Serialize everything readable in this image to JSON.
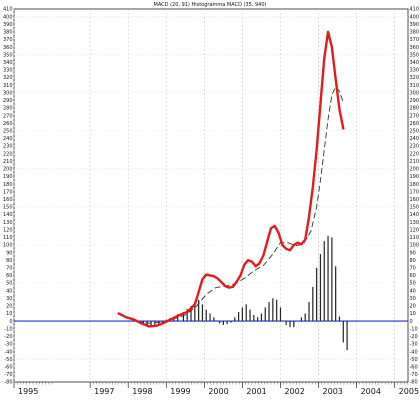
{
  "chart_data": {
    "type": "line",
    "title": "MACD (20, 91) Histogramma MACD (35, 940)",
    "xlabel": "",
    "ylabel": "",
    "xlim": [
      1995.0,
      2005.35
    ],
    "ylim": [
      -80,
      410
    ],
    "grid": true,
    "x_ticks": [
      "1995",
      "1997",
      "1998",
      "1999",
      "2000",
      "2001",
      "2002",
      "2003",
      "2004",
      "2005"
    ],
    "x_tick_positions": [
      1995,
      1997,
      1998,
      1999,
      2000,
      2001,
      2002,
      2003,
      2004,
      2005
    ],
    "y_ticks": [
      410,
      400,
      390,
      380,
      370,
      360,
      350,
      340,
      330,
      320,
      310,
      300,
      290,
      280,
      270,
      260,
      250,
      240,
      230,
      220,
      210,
      200,
      190,
      180,
      170,
      160,
      150,
      140,
      130,
      120,
      110,
      100,
      90,
      80,
      70,
      60,
      50,
      40,
      30,
      20,
      10,
      0,
      -10,
      -20,
      -30,
      -40,
      -50,
      -60,
      -70,
      -80
    ],
    "zero_line": 0,
    "series": [
      {
        "kind": "line",
        "color": "#e31b1b",
        "values": [
          [
            1997.75,
            10
          ],
          [
            1997.95,
            5
          ],
          [
            1998.15,
            2
          ],
          [
            1998.35,
            -3
          ],
          [
            1998.55,
            -7
          ],
          [
            1998.75,
            -6
          ],
          [
            1998.95,
            -2
          ],
          [
            1999.15,
            3
          ],
          [
            1999.35,
            8
          ],
          [
            1999.55,
            12
          ],
          [
            1999.75,
            22
          ],
          [
            1999.85,
            38
          ],
          [
            1999.95,
            55
          ],
          [
            2000.05,
            61
          ],
          [
            2000.15,
            60
          ],
          [
            2000.25,
            59
          ],
          [
            2000.35,
            56
          ],
          [
            2000.45,
            51
          ],
          [
            2000.55,
            46
          ],
          [
            2000.65,
            44
          ],
          [
            2000.75,
            45
          ],
          [
            2000.85,
            52
          ],
          [
            2000.95,
            60
          ],
          [
            2001.05,
            74
          ],
          [
            2001.15,
            80
          ],
          [
            2001.25,
            78
          ],
          [
            2001.35,
            72
          ],
          [
            2001.45,
            76
          ],
          [
            2001.55,
            86
          ],
          [
            2001.65,
            104
          ],
          [
            2001.75,
            122
          ],
          [
            2001.85,
            125
          ],
          [
            2001.95,
            116
          ],
          [
            2002.05,
            100
          ],
          [
            2002.15,
            95
          ],
          [
            2002.25,
            93
          ],
          [
            2002.35,
            100
          ],
          [
            2002.45,
            103
          ],
          [
            2002.55,
            101
          ],
          [
            2002.65,
            107
          ],
          [
            2002.75,
            137
          ],
          [
            2002.85,
            176
          ],
          [
            2002.95,
            225
          ],
          [
            2003.05,
            285
          ],
          [
            2003.15,
            345
          ],
          [
            2003.25,
            380
          ],
          [
            2003.35,
            360
          ],
          [
            2003.45,
            318
          ],
          [
            2003.55,
            278
          ],
          [
            2003.65,
            253
          ]
        ]
      },
      {
        "kind": "line-dashed",
        "color": "#333333",
        "values": [
          [
            1998.0,
            4
          ],
          [
            1998.3,
            -1
          ],
          [
            1998.6,
            -3
          ],
          [
            1998.9,
            -1
          ],
          [
            1999.2,
            3
          ],
          [
            1999.5,
            8
          ],
          [
            1999.8,
            20
          ],
          [
            2000.05,
            35
          ],
          [
            2000.3,
            44
          ],
          [
            2000.55,
            46
          ],
          [
            2000.8,
            49
          ],
          [
            2001.05,
            56
          ],
          [
            2001.3,
            66
          ],
          [
            2001.55,
            73
          ],
          [
            2001.8,
            88
          ],
          [
            2002.0,
            103
          ],
          [
            2002.2,
            103
          ],
          [
            2002.4,
            99
          ],
          [
            2002.6,
            101
          ],
          [
            2002.8,
            118
          ],
          [
            2002.95,
            150
          ],
          [
            2003.05,
            185
          ],
          [
            2003.15,
            225
          ],
          [
            2003.25,
            265
          ],
          [
            2003.35,
            297
          ],
          [
            2003.45,
            308
          ],
          [
            2003.55,
            302
          ],
          [
            2003.65,
            287
          ]
        ]
      },
      {
        "kind": "histogram",
        "color": "#222222",
        "values": [
          [
            1998.4,
            -3
          ],
          [
            1998.5,
            -5
          ],
          [
            1998.6,
            -6
          ],
          [
            1998.7,
            -5
          ],
          [
            1998.8,
            -3
          ],
          [
            1998.9,
            -2
          ],
          [
            1999.0,
            2
          ],
          [
            1999.1,
            4
          ],
          [
            1999.2,
            6
          ],
          [
            1999.3,
            9
          ],
          [
            1999.45,
            12
          ],
          [
            1999.55,
            16
          ],
          [
            1999.65,
            20
          ],
          [
            1999.75,
            25
          ],
          [
            1999.85,
            28
          ],
          [
            1999.95,
            22
          ],
          [
            2000.05,
            15
          ],
          [
            2000.15,
            10
          ],
          [
            2000.25,
            5
          ],
          [
            2000.4,
            -3
          ],
          [
            2000.5,
            -5
          ],
          [
            2000.6,
            -4
          ],
          [
            2000.7,
            -2
          ],
          [
            2000.8,
            5
          ],
          [
            2000.9,
            12
          ],
          [
            2001.0,
            18
          ],
          [
            2001.1,
            22
          ],
          [
            2001.2,
            15
          ],
          [
            2001.3,
            8
          ],
          [
            2001.4,
            5
          ],
          [
            2001.5,
            10
          ],
          [
            2001.6,
            18
          ],
          [
            2001.7,
            25
          ],
          [
            2001.8,
            30
          ],
          [
            2001.9,
            28
          ],
          [
            2002.0,
            18
          ],
          [
            2002.15,
            -5
          ],
          [
            2002.25,
            -8
          ],
          [
            2002.35,
            -8
          ],
          [
            2002.55,
            5
          ],
          [
            2002.65,
            10
          ],
          [
            2002.75,
            25
          ],
          [
            2002.85,
            45
          ],
          [
            2002.95,
            70
          ],
          [
            2003.05,
            88
          ],
          [
            2003.15,
            105
          ],
          [
            2003.25,
            112
          ],
          [
            2003.35,
            110
          ],
          [
            2003.45,
            72
          ],
          [
            2003.55,
            6
          ],
          [
            2003.65,
            -28
          ],
          [
            2003.75,
            -38
          ]
        ]
      }
    ]
  }
}
